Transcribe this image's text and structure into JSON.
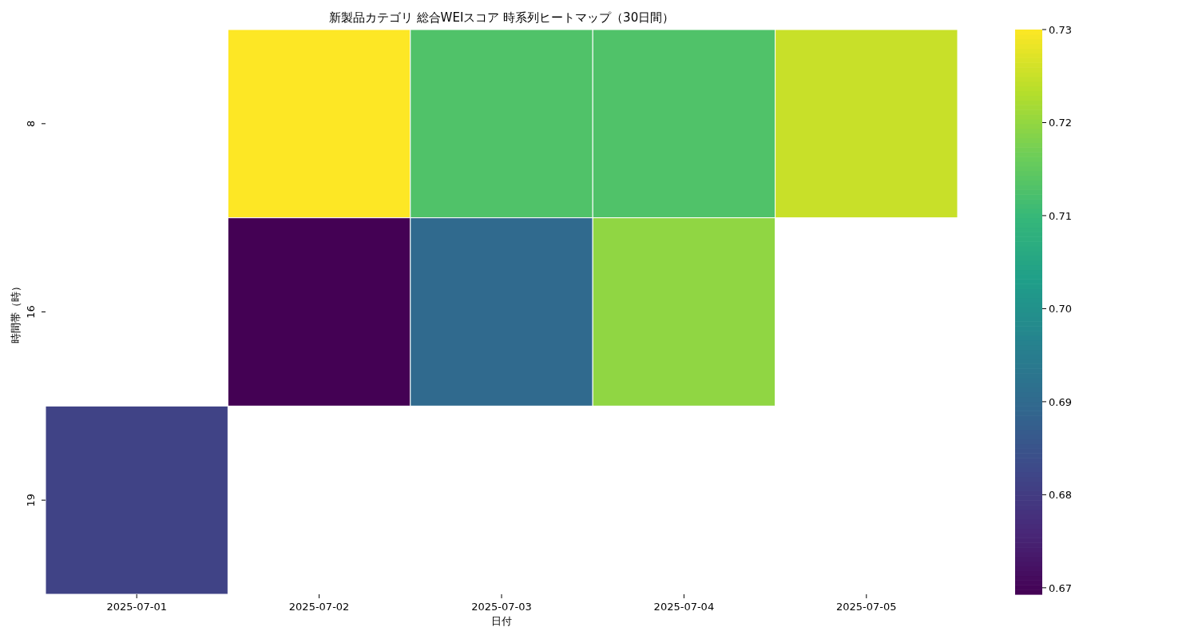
{
  "chart_data": {
    "type": "heatmap",
    "title": "新製品カテゴリ 総合WEIスコア 時系列ヒートマップ（30日間）",
    "xlabel": "日付",
    "ylabel": "時間帯（時）",
    "categories": [
      "2025-07-01",
      "2025-07-02",
      "2025-07-03",
      "2025-07-04",
      "2025-07-05"
    ],
    "y_categories": [
      "8",
      "16",
      "19"
    ],
    "cells": [
      [
        null,
        0.73,
        0.713,
        0.713,
        0.725
      ],
      [
        null,
        0.6693,
        0.69,
        0.7197,
        null
      ],
      [
        0.6815,
        null,
        null,
        null,
        null
      ]
    ],
    "clim": [
      0.6693,
      0.73
    ],
    "cticks": [
      {
        "value": 0.67,
        "label": "0.67"
      },
      {
        "value": 0.68,
        "label": "0.68"
      },
      {
        "value": 0.69,
        "label": "0.69"
      },
      {
        "value": 0.7,
        "label": "0.70"
      },
      {
        "value": 0.71,
        "label": "0.71"
      },
      {
        "value": 0.72,
        "label": "0.72"
      },
      {
        "value": 0.73,
        "label": "0.73"
      }
    ]
  }
}
